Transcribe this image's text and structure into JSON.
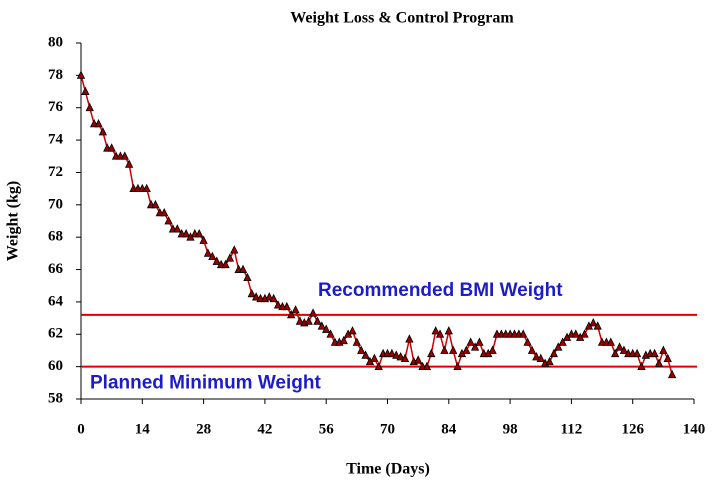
{
  "chart_data": {
    "type": "line",
    "title": "Weight Loss & Control Program",
    "xlabel": "Time (Days)",
    "ylabel": "Weight (kg)",
    "x": [
      0,
      1,
      2,
      3,
      4,
      5,
      6,
      7,
      8,
      9,
      10,
      11,
      12,
      13,
      14,
      15,
      16,
      17,
      18,
      19,
      20,
      21,
      22,
      23,
      24,
      25,
      26,
      27,
      28,
      29,
      30,
      31,
      32,
      33,
      34,
      35,
      36,
      37,
      38,
      39,
      40,
      41,
      42,
      43,
      44,
      45,
      46,
      47,
      48,
      49,
      50,
      51,
      52,
      53,
      54,
      55,
      56,
      57,
      58,
      59,
      60,
      61,
      62,
      63,
      64,
      65,
      66,
      67,
      68,
      69,
      70,
      71,
      72,
      73,
      74,
      75,
      76,
      77,
      78,
      79,
      80,
      81,
      82,
      83,
      84,
      85,
      86,
      87,
      88,
      89,
      90,
      91,
      92,
      93,
      94,
      95,
      96,
      97,
      98,
      99,
      100,
      101,
      102,
      103,
      104,
      105,
      106,
      107,
      108,
      109,
      110,
      111,
      112,
      113,
      114,
      115,
      116,
      117,
      118,
      119,
      120,
      121,
      122,
      123,
      124,
      125,
      126,
      127,
      128,
      129,
      130,
      131,
      132,
      133,
      134,
      135
    ],
    "series": [
      {
        "color": "#cc0000",
        "marker_color": "#9b0000",
        "values": [
          78,
          77,
          76,
          75,
          75,
          74.5,
          73.5,
          73.5,
          73,
          73,
          73,
          72.5,
          71,
          71,
          71,
          71,
          70,
          70,
          69.5,
          69.5,
          69,
          68.5,
          68.5,
          68.2,
          68.2,
          68,
          68.2,
          68.2,
          67.8,
          67,
          66.8,
          66.5,
          66.3,
          66.3,
          66.7,
          67.2,
          66,
          66,
          65.5,
          64.5,
          64.3,
          64.2,
          64.2,
          64.3,
          64.2,
          63.8,
          63.7,
          63.7,
          63.2,
          63.5,
          62.8,
          62.7,
          62.8,
          63.3,
          62.8,
          62.5,
          62.3,
          62,
          61.5,
          61.5,
          61.6,
          62,
          62.2,
          61.5,
          61,
          60.7,
          60.3,
          60.5,
          60,
          60.8,
          60.8,
          60.8,
          60.7,
          60.6,
          60.5,
          61.7,
          60.3,
          60.4,
          60,
          60,
          60.8,
          62.2,
          62,
          61,
          62.2,
          61,
          60,
          60.8,
          61,
          61.5,
          61.2,
          61.5,
          60.8,
          60.8,
          61,
          62,
          62,
          62,
          62,
          62,
          62,
          62,
          61.5,
          61,
          60.6,
          60.5,
          60.2,
          60.3,
          60.8,
          61.2,
          61.5,
          61.8,
          62,
          62,
          61.8,
          62,
          62.5,
          62.7,
          62.5,
          61.5,
          61.5,
          61.5,
          60.8,
          61.2,
          61,
          60.8,
          60.8,
          60.8,
          60,
          60.7,
          60.8,
          60.8,
          60.2,
          61,
          60.5,
          59.5
        ]
      }
    ],
    "reference_lines": [
      {
        "label": "Recommended BMI Weight",
        "value": 63.2,
        "color": "#e00000"
      },
      {
        "label": "Planned Minimum Weight",
        "value": 60,
        "color": "#e00000"
      }
    ],
    "xlim": [
      0,
      140
    ],
    "xticks": [
      0,
      14,
      28,
      42,
      56,
      70,
      84,
      98,
      112,
      126,
      140
    ],
    "ylim": [
      58,
      80
    ],
    "yticks": [
      58,
      60,
      62,
      64,
      66,
      68,
      70,
      72,
      74,
      76,
      78,
      80
    ],
    "grid": false
  }
}
